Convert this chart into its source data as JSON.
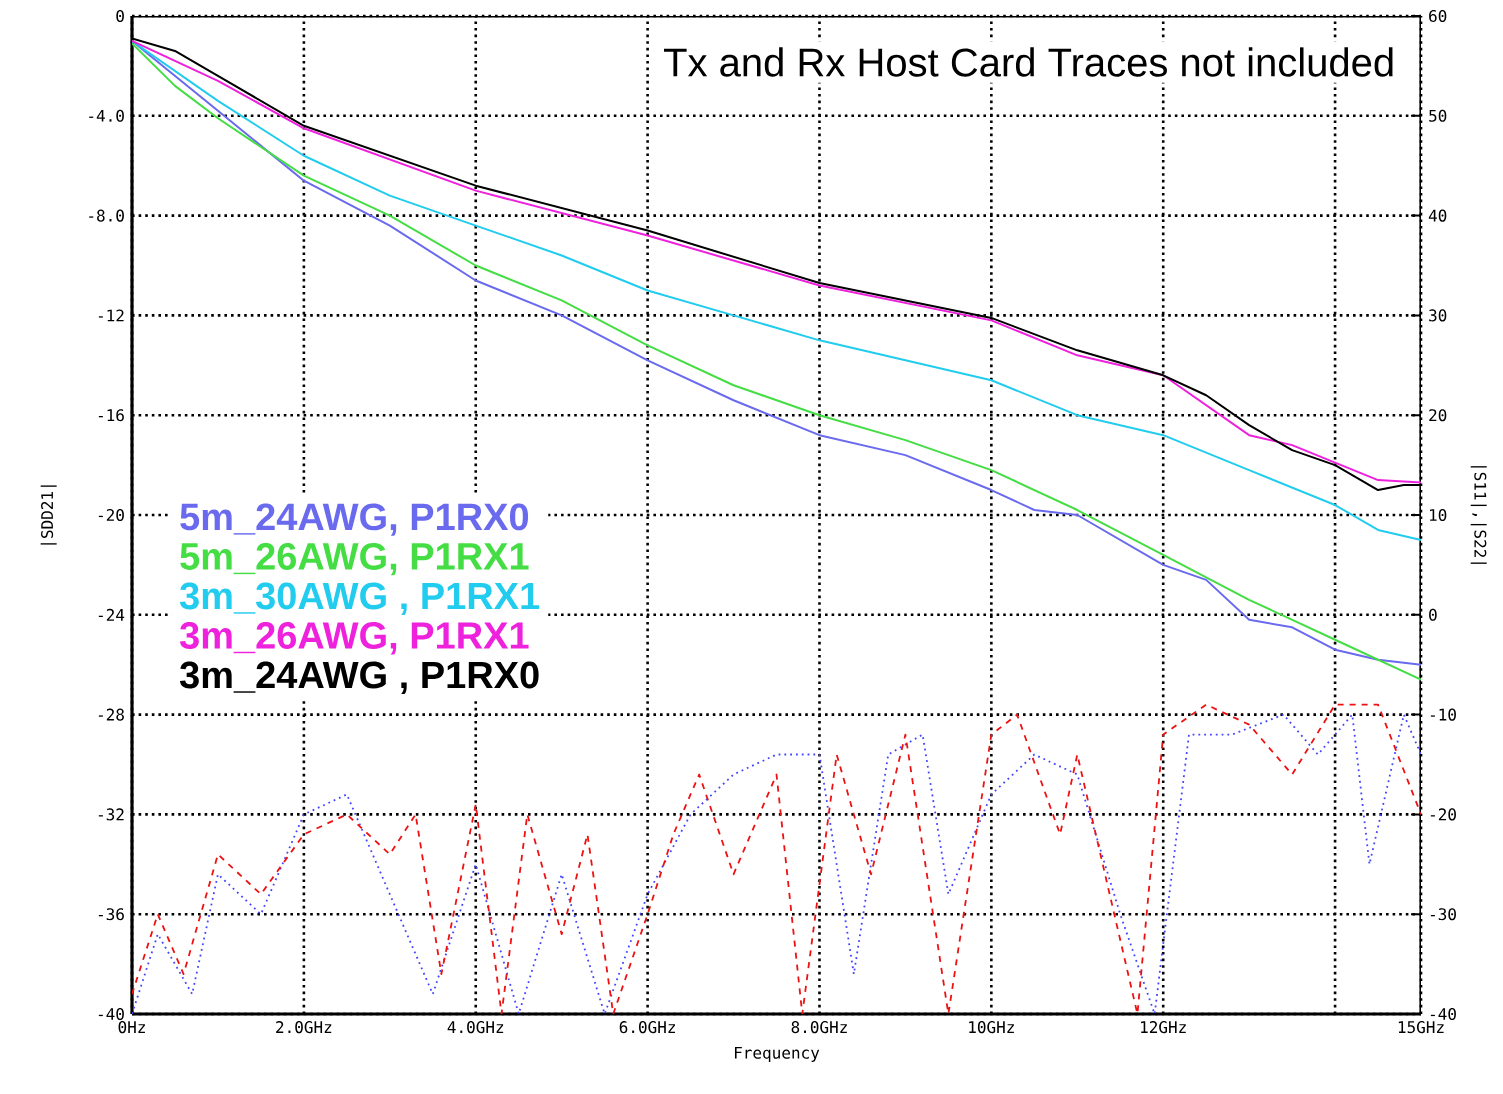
{
  "chart_data": {
    "type": "line",
    "annotations": [
      "Tx and Rx Host Card Traces not included"
    ],
    "xlabel": "Frequency",
    "ylabel": "|SDD21|",
    "y2label": "|S11|,|S22|",
    "xlim": [
      0,
      15
    ],
    "xticks": [
      {
        "value": 0,
        "label": "0Hz"
      },
      {
        "value": 2,
        "label": "2.0GHz"
      },
      {
        "value": 4,
        "label": "4.0GHz"
      },
      {
        "value": 6,
        "label": "6.0GHz"
      },
      {
        "value": 8,
        "label": "8.0GHz"
      },
      {
        "value": 10,
        "label": "10GHz"
      },
      {
        "value": 12,
        "label": "12GHz"
      },
      {
        "value": 14,
        "label": null
      },
      {
        "value": 15,
        "label": "15GHz"
      }
    ],
    "ylim": [
      -40,
      0
    ],
    "yticks": [
      0,
      {
        "value": -4,
        "label": "-4.0"
      },
      {
        "value": -8,
        "label": "-8.0"
      },
      -12,
      -16,
      -20,
      -24,
      -28,
      -32,
      -36,
      -40
    ],
    "y2lim": [
      -40,
      60
    ],
    "y2ticks": [
      60,
      50,
      40,
      30,
      20,
      10,
      0,
      -10,
      -20,
      -30,
      -40
    ],
    "grid": true,
    "legend": "left",
    "series": [
      {
        "name": "5m_24AWG, P1RX0",
        "color": "#6a6aee",
        "line_style": "solid",
        "x": [
          0,
          0.5,
          1,
          2,
          3,
          4,
          5,
          6,
          7,
          8,
          9,
          10,
          10.5,
          11,
          12,
          12.5,
          13,
          13.5,
          14,
          14.5,
          15
        ],
        "values": [
          -1.0,
          -2.4,
          -3.8,
          -6.6,
          -8.4,
          -10.6,
          -12.0,
          -13.8,
          -15.4,
          -16.8,
          -17.6,
          -19.0,
          -19.8,
          -20.0,
          -22.0,
          -22.6,
          -24.2,
          -24.5,
          -25.4,
          -25.8,
          -26.0
        ]
      },
      {
        "name": "5m_26AWG, P1RX1",
        "color": "#44dd44",
        "line_style": "solid",
        "x": [
          0,
          0.5,
          1,
          2,
          3,
          4,
          5,
          6,
          7,
          8,
          9,
          10,
          11,
          12,
          13,
          14,
          15
        ],
        "values": [
          -1.1,
          -2.8,
          -4.1,
          -6.4,
          -8.0,
          -10.0,
          -11.4,
          -13.2,
          -14.8,
          -16.0,
          -17.0,
          -18.2,
          -19.8,
          -21.6,
          -23.4,
          -25.0,
          -26.6
        ]
      },
      {
        "name": "3m_30AWG , P1RX1",
        "color": "#22ccee",
        "line_style": "solid",
        "x": [
          0,
          0.5,
          1,
          2,
          3,
          4,
          5,
          6,
          7,
          8,
          9,
          10,
          11,
          12,
          13,
          14,
          14.5,
          15
        ],
        "values": [
          -1.0,
          -2.2,
          -3.4,
          -5.6,
          -7.2,
          -8.4,
          -9.6,
          -11.0,
          -12.0,
          -13.0,
          -13.8,
          -14.6,
          -16.0,
          -16.8,
          -18.2,
          -19.6,
          -20.6,
          -21.0
        ]
      },
      {
        "name": "3m_26AWG, P1RX1",
        "color": "#ee22dd",
        "line_style": "solid",
        "x": [
          0,
          1,
          2,
          4,
          6,
          8,
          10,
          11,
          12,
          12.5,
          13,
          13.5,
          14,
          14.5,
          15
        ],
        "values": [
          -1.0,
          -2.6,
          -4.5,
          -7.0,
          -8.8,
          -10.8,
          -12.2,
          -13.6,
          -14.4,
          -15.6,
          -16.8,
          -17.2,
          -17.9,
          -18.6,
          -18.7
        ]
      },
      {
        "name": "3m_24AWG , P1RX0",
        "color": "#000000",
        "line_style": "solid",
        "x": [
          0,
          0.5,
          1,
          2,
          4,
          6,
          8,
          10,
          11,
          12,
          12.5,
          13,
          13.5,
          14,
          14.5,
          14.8,
          15
        ],
        "values": [
          -0.9,
          -1.4,
          -2.4,
          -4.4,
          -6.8,
          -8.6,
          -10.7,
          -12.1,
          -13.4,
          -14.4,
          -15.2,
          -16.4,
          -17.4,
          -18.0,
          -19.0,
          -18.8,
          -18.8
        ]
      },
      {
        "color": "#4444ff",
        "axis": "y2",
        "line_style": "dotted",
        "x": [
          0,
          0.3,
          0.7,
          1,
          1.5,
          2,
          2.5,
          3,
          3.5,
          4,
          4.5,
          5,
          5.5,
          6,
          6.5,
          7,
          7.5,
          8,
          8.4,
          8.8,
          9.2,
          9.5,
          10,
          10.5,
          11,
          11.5,
          11.9,
          12.3,
          12.8,
          13.4,
          13.8,
          14.2,
          14.4,
          14.8,
          15
        ],
        "values": [
          -40,
          -32,
          -38,
          -26,
          -30,
          -20,
          -18,
          -28,
          -38,
          -25,
          -40,
          -26,
          -40,
          -28,
          -20,
          -16,
          -14,
          -14,
          -36,
          -14,
          -12,
          -28,
          -18,
          -14,
          -16,
          -30,
          -40,
          -12,
          -12,
          -10,
          -14,
          -10,
          -25,
          -10,
          -14
        ]
      },
      {
        "color": "#ee1111",
        "axis": "y2",
        "line_style": "dashed",
        "x": [
          0,
          0.3,
          0.6,
          1,
          1.5,
          2,
          2.5,
          3,
          3.3,
          3.6,
          4,
          4.3,
          4.6,
          5,
          5.3,
          5.6,
          6,
          6.3,
          6.6,
          7,
          7.5,
          7.8,
          8.2,
          8.6,
          9,
          9.5,
          10,
          10.3,
          10.8,
          11,
          11.7,
          12,
          12.5,
          13,
          13.5,
          14,
          14.5,
          15
        ],
        "values": [
          -38,
          -30,
          -36,
          -24,
          -28,
          -22,
          -20,
          -24,
          -20,
          -36,
          -19,
          -40,
          -20,
          -32,
          -22,
          -40,
          -30,
          -22,
          -16,
          -26,
          -16,
          -40,
          -14,
          -26,
          -12,
          -40,
          -12,
          -10,
          -22,
          -14,
          -40,
          -12,
          -9,
          -11,
          -16,
          -9,
          -9,
          -20
        ]
      }
    ]
  }
}
